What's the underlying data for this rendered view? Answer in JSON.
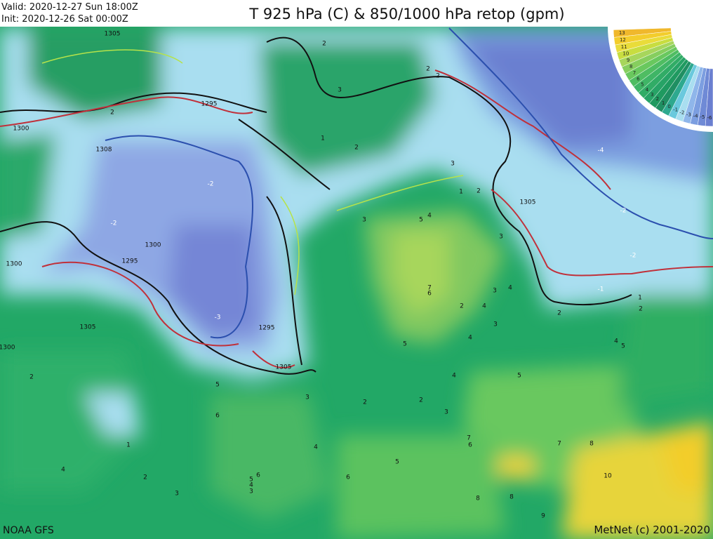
{
  "header": {
    "valid": "Valid: 2020-12-27 Sun 18:00Z",
    "init": "Init:   2020-12-26 Sat 00:00Z",
    "title": "T 925 hPa (C) & 850/1000 hPa retop (gpm)"
  },
  "legend": {
    "labels": [
      "13",
      "12",
      "11",
      "10",
      "9",
      "8",
      "7",
      "6",
      "5",
      "4",
      "3",
      "2",
      "1",
      "0",
      "-1",
      "-2",
      "-3",
      "-4",
      "-5",
      "-6"
    ]
  },
  "map": {
    "labels": [
      "1305",
      "2",
      "1300",
      "1308",
      "1295",
      "2",
      "3",
      "1",
      "2",
      "2",
      "2",
      "3",
      "1",
      "2",
      "1305",
      "-4",
      "-2",
      "-2",
      "-1",
      "-2",
      "-2",
      "1300",
      "1295",
      "1300",
      "-3",
      "1295",
      "1305",
      "1300",
      "1305",
      "3",
      "5",
      "4",
      "3",
      "7",
      "6",
      "2",
      "3",
      "4",
      "4",
      "3",
      "5",
      "4",
      "2",
      "1",
      "2",
      "4",
      "5",
      "4",
      "5",
      "2",
      "5",
      "6",
      "3",
      "2",
      "2",
      "3",
      "7",
      "6",
      "7",
      "8",
      "1",
      "4",
      "2",
      "6",
      "5",
      "4",
      "3",
      "3",
      "4",
      "5",
      "6",
      "10",
      "8",
      "8",
      "9"
    ]
  },
  "footer": {
    "source": "NOAA GFS",
    "credit": "MetNet (c) 2001-2020"
  }
}
